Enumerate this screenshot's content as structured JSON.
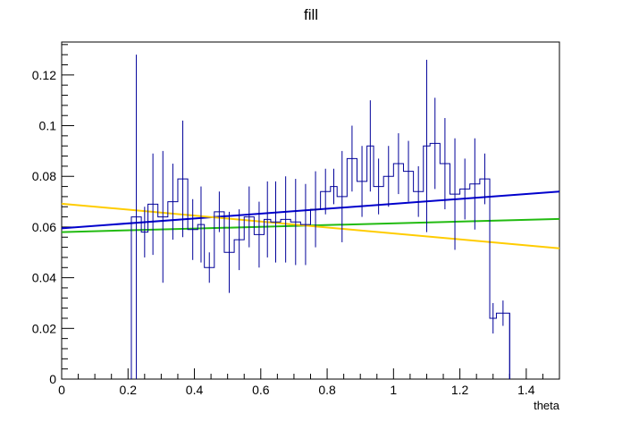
{
  "chart_data": {
    "type": "histogram-with-error-bars",
    "title": "fill",
    "xlabel": "theta",
    "ylabel": "",
    "xlim": [
      0,
      1.5
    ],
    "ylim": [
      0,
      0.133
    ],
    "x_ticks": [
      0,
      0.2,
      0.4,
      0.6,
      0.8,
      1,
      1.2,
      1.4
    ],
    "x_tick_labels": [
      "0",
      "0.2",
      "0.4",
      "0.6",
      "0.8",
      "1",
      "1.2",
      "1.4"
    ],
    "y_ticks": [
      0,
      0.02,
      0.04,
      0.06,
      0.08,
      0.1,
      0.12
    ],
    "y_tick_labels": [
      "0",
      "0.02",
      "0.04",
      "0.06",
      "0.08",
      "0.1",
      "0.12"
    ],
    "grid": false,
    "histogram": {
      "color": "#000099",
      "bins": [
        {
          "low": 0.21,
          "high": 0.24,
          "value": 0.064,
          "error": 0.064
        },
        {
          "low": 0.24,
          "high": 0.26,
          "value": 0.058,
          "error": 0.01
        },
        {
          "low": 0.26,
          "high": 0.29,
          "value": 0.069,
          "error": 0.02
        },
        {
          "low": 0.29,
          "high": 0.32,
          "value": 0.064,
          "error": 0.026
        },
        {
          "low": 0.32,
          "high": 0.35,
          "value": 0.07,
          "error": 0.015
        },
        {
          "low": 0.35,
          "high": 0.38,
          "value": 0.079,
          "error": 0.023
        },
        {
          "low": 0.38,
          "high": 0.41,
          "value": 0.059,
          "error": 0.012
        },
        {
          "low": 0.41,
          "high": 0.43,
          "value": 0.061,
          "error": 0.015
        },
        {
          "low": 0.43,
          "high": 0.46,
          "value": 0.044,
          "error": 0.006
        },
        {
          "low": 0.46,
          "high": 0.49,
          "value": 0.066,
          "error": 0.008
        },
        {
          "low": 0.49,
          "high": 0.52,
          "value": 0.05,
          "error": 0.016
        },
        {
          "low": 0.52,
          "high": 0.55,
          "value": 0.055,
          "error": 0.012
        },
        {
          "low": 0.55,
          "high": 0.58,
          "value": 0.064,
          "error": 0.012
        },
        {
          "low": 0.58,
          "high": 0.61,
          "value": 0.057,
          "error": 0.013
        },
        {
          "low": 0.61,
          "high": 0.63,
          "value": 0.063,
          "error": 0.015
        },
        {
          "low": 0.63,
          "high": 0.66,
          "value": 0.062,
          "error": 0.016
        },
        {
          "low": 0.66,
          "high": 0.69,
          "value": 0.063,
          "error": 0.017
        },
        {
          "low": 0.69,
          "high": 0.72,
          "value": 0.062,
          "error": 0.017
        },
        {
          "low": 0.72,
          "high": 0.75,
          "value": 0.061,
          "error": 0.016
        },
        {
          "low": 0.75,
          "high": 0.78,
          "value": 0.067,
          "error": 0.015
        },
        {
          "low": 0.78,
          "high": 0.81,
          "value": 0.074,
          "error": 0.009
        },
        {
          "low": 0.81,
          "high": 0.83,
          "value": 0.076,
          "error": 0.007
        },
        {
          "low": 0.83,
          "high": 0.86,
          "value": 0.072,
          "error": 0.018
        },
        {
          "low": 0.86,
          "high": 0.89,
          "value": 0.087,
          "error": 0.013
        },
        {
          "low": 0.89,
          "high": 0.92,
          "value": 0.078,
          "error": 0.014
        },
        {
          "low": 0.92,
          "high": 0.94,
          "value": 0.092,
          "error": 0.018
        },
        {
          "low": 0.94,
          "high": 0.97,
          "value": 0.076,
          "error": 0.011
        },
        {
          "low": 0.97,
          "high": 1.0,
          "value": 0.08,
          "error": 0.012
        },
        {
          "low": 1.0,
          "high": 1.03,
          "value": 0.085,
          "error": 0.012
        },
        {
          "low": 1.03,
          "high": 1.06,
          "value": 0.082,
          "error": 0.012
        },
        {
          "low": 1.06,
          "high": 1.09,
          "value": 0.074,
          "error": 0.01
        },
        {
          "low": 1.09,
          "high": 1.11,
          "value": 0.092,
          "error": 0.034
        },
        {
          "low": 1.11,
          "high": 1.14,
          "value": 0.093,
          "error": 0.018
        },
        {
          "low": 1.14,
          "high": 1.17,
          "value": 0.085,
          "error": 0.018
        },
        {
          "low": 1.17,
          "high": 1.2,
          "value": 0.073,
          "error": 0.022
        },
        {
          "low": 1.2,
          "high": 1.23,
          "value": 0.075,
          "error": 0.012
        },
        {
          "low": 1.23,
          "high": 1.26,
          "value": 0.077,
          "error": 0.018
        },
        {
          "low": 1.26,
          "high": 1.29,
          "value": 0.079,
          "error": 0.01
        },
        {
          "low": 1.29,
          "high": 1.31,
          "value": 0.024,
          "error": 0.006
        },
        {
          "low": 1.31,
          "high": 1.35,
          "value": 0.026,
          "error": 0.005
        }
      ],
      "extra_error_bars": [
        {
          "x": 1.35,
          "low": 0.0,
          "high": 0.026
        }
      ]
    },
    "series": [
      {
        "type": "line",
        "color": "#0000cc",
        "x": [
          0,
          1.5
        ],
        "y": [
          0.0595,
          0.074
        ]
      },
      {
        "type": "line",
        "color": "#22bb11",
        "x": [
          0,
          1.5
        ],
        "y": [
          0.058,
          0.0632
        ]
      },
      {
        "type": "line",
        "color": "#ffcc00",
        "x": [
          0,
          1.5
        ],
        "y": [
          0.0692,
          0.0516
        ]
      }
    ]
  }
}
